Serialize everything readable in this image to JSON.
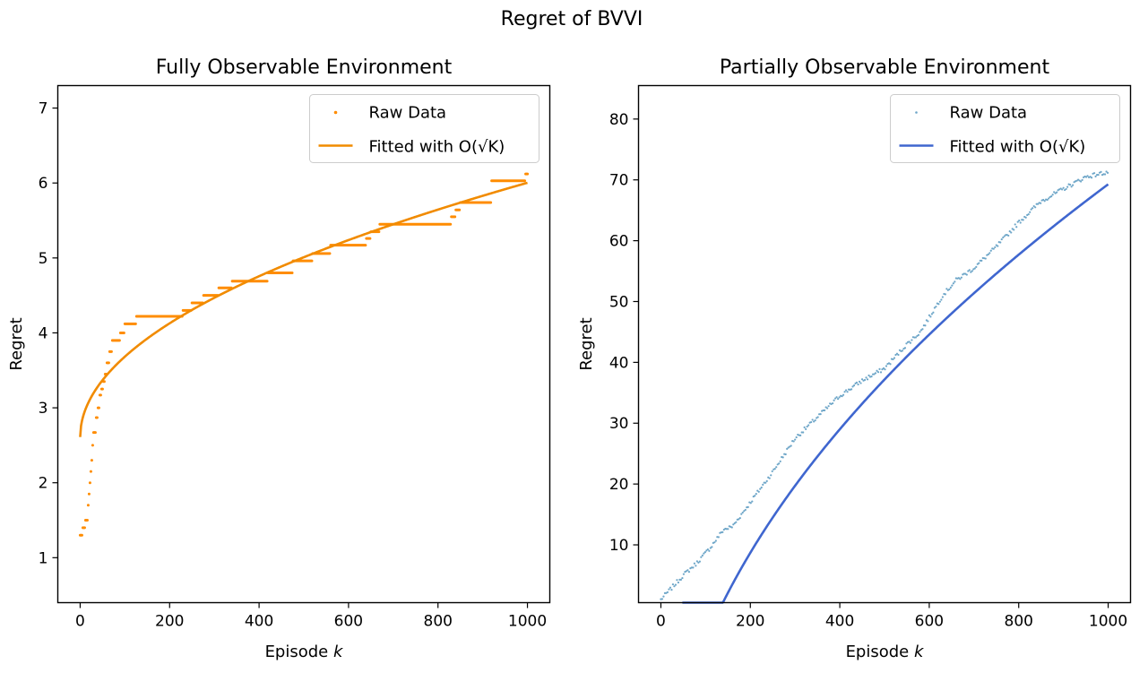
{
  "figure": {
    "suptitle": "Regret of BVVI"
  },
  "chart_data": [
    {
      "type": "scatter",
      "title": "Fully Observable Environment",
      "xlabel": "Episode k",
      "ylabel": "Regret",
      "xlim": [
        -50,
        1050
      ],
      "ylim": [
        0.4,
        7.3
      ],
      "xticks": [
        0,
        200,
        400,
        600,
        800,
        1000
      ],
      "yticks": [
        1,
        2,
        3,
        4,
        5,
        6,
        7
      ],
      "grid": false,
      "legend_position": "upper right",
      "colors": {
        "raw": "#ff8c00",
        "fit": "#f18b00"
      },
      "series": [
        {
          "name": "Raw Data",
          "kind": "scatter",
          "steps": [
            [
              0,
              1.3
            ],
            [
              6,
              1.4
            ],
            [
              12,
              1.5
            ],
            [
              17,
              1.7
            ],
            [
              20,
              1.85
            ],
            [
              22,
              2.0
            ],
            [
              24,
              2.15
            ],
            [
              26,
              2.3
            ],
            [
              28,
              2.5
            ],
            [
              30,
              2.67
            ],
            [
              35,
              2.87
            ],
            [
              40,
              3.0
            ],
            [
              44,
              3.17
            ],
            [
              48,
              3.25
            ],
            [
              52,
              3.35
            ],
            [
              56,
              3.45
            ],
            [
              60,
              3.6
            ],
            [
              66,
              3.75
            ],
            [
              72,
              3.9
            ],
            [
              90,
              4.0
            ],
            [
              100,
              4.12
            ],
            [
              125,
              4.22
            ],
            [
              230,
              4.3
            ],
            [
              250,
              4.4
            ],
            [
              275,
              4.5
            ],
            [
              310,
              4.6
            ],
            [
              340,
              4.69
            ],
            [
              420,
              4.8
            ],
            [
              475,
              4.96
            ],
            [
              520,
              5.06
            ],
            [
              560,
              5.17
            ],
            [
              640,
              5.26
            ],
            [
              650,
              5.35
            ],
            [
              670,
              5.45
            ],
            [
              830,
              5.55
            ],
            [
              840,
              5.64
            ],
            [
              850,
              5.74
            ],
            [
              920,
              6.03
            ],
            [
              995,
              6.12
            ],
            [
              1000,
              6.12
            ]
          ]
        },
        {
          "name": "Fitted with O(√K)",
          "kind": "line",
          "model": "a*sqrt(k)+b",
          "a": 0.1073,
          "b": 2.61,
          "x_range": [
            0,
            1000
          ]
        }
      ]
    },
    {
      "type": "scatter",
      "title": "Partially Observable Environment",
      "xlabel": "Episode k",
      "ylabel": "Regret",
      "xlim": [
        -50,
        1050
      ],
      "ylim": [
        0.5,
        85.5
      ],
      "xticks": [
        0,
        200,
        400,
        600,
        800,
        1000
      ],
      "yticks": [
        10,
        20,
        30,
        40,
        50,
        60,
        70,
        80
      ],
      "grid": false,
      "legend_position": "upper right",
      "colors": {
        "raw": "#6ea6c8",
        "fit": "#3f66cf"
      },
      "series": [
        {
          "name": "Raw Data",
          "kind": "scatter",
          "points": [
            [
              0,
              1.0
            ],
            [
              25,
              3.0
            ],
            [
              50,
              5.0
            ],
            [
              80,
              7.0
            ],
            [
              110,
              9.5
            ],
            [
              140,
              12.5
            ],
            [
              160,
              13.0
            ],
            [
              200,
              17.0
            ],
            [
              250,
              22.0
            ],
            [
              300,
              27.5
            ],
            [
              350,
              31.0
            ],
            [
              400,
              34.5
            ],
            [
              450,
              37.0
            ],
            [
              500,
              39.0
            ],
            [
              550,
              43.0
            ],
            [
              580,
              45.0
            ],
            [
              630,
              51.0
            ],
            [
              660,
              53.5
            ],
            [
              700,
              55.5
            ],
            [
              750,
              59.0
            ],
            [
              800,
              63.0
            ],
            [
              850,
              66.5
            ],
            [
              900,
              68.5
            ],
            [
              950,
              70.5
            ],
            [
              1000,
              71.3
            ]
          ]
        },
        {
          "name": "Fitted with O(√K)",
          "kind": "line",
          "model": "a*sqrt(k)+b",
          "a": 3.465,
          "b": -40.3,
          "x_range": [
            48,
            1000
          ]
        }
      ]
    }
  ]
}
